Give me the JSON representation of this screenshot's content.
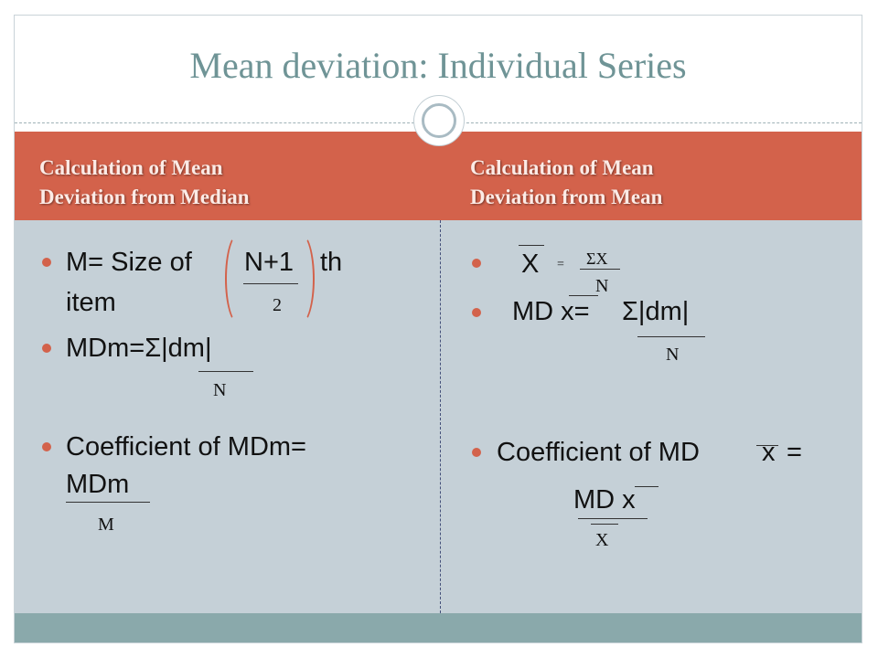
{
  "title": "Mean deviation: Individual Series",
  "left_header": {
    "line1": "Calculation of Mean",
    "line2": "Deviation from Median"
  },
  "right_header": {
    "line1": "Calculation of Mean",
    "line2": "Deviation from Mean"
  },
  "left": {
    "item1": {
      "prefix": "M= Size of",
      "numerator": "N+1",
      "suffix": "th",
      "line2": "item",
      "denominator": "2"
    },
    "item2": {
      "text": "MDm=Σ|dm|",
      "denominator": "N"
    },
    "item3": {
      "line1": "Coefficient of MDm=",
      "numerator": "MDm",
      "denominator": "M"
    }
  },
  "right": {
    "item1": {
      "lhs": "X",
      "eq": "=",
      "numerator": "ΣX",
      "denominator": "N"
    },
    "item2": {
      "lhs": "MD x=",
      "numerator": "Σ|dm|",
      "denominator": "N"
    },
    "item3": {
      "line1": "Coefficient of MD",
      "var": "x",
      "eq": "=",
      "numerator": "MD x",
      "denominator": "X"
    }
  },
  "colors": {
    "accent": "#d3624b",
    "title": "#6f9496",
    "body_bg": "#c5d0d7",
    "footer": "#8aa9ab"
  }
}
